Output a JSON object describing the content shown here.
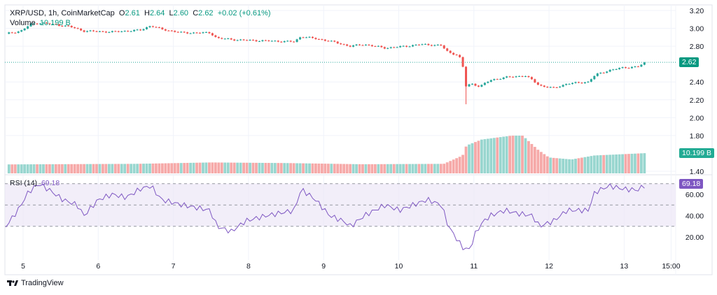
{
  "header": {
    "symbol": "XRP/USD, 1h, CoinMarketCap",
    "o_label": "O",
    "o": "2.61",
    "h_label": "H",
    "h": "2.64",
    "l_label": "L",
    "l": "2.60",
    "c_label": "C",
    "c": "2.62",
    "change": "+0.02 (+0.61%)",
    "volume_label": "Volume",
    "volume": "10.199 B"
  },
  "rsi_legend": {
    "label": "RSI (14)",
    "value": "69.18"
  },
  "price_tag": "2.62",
  "volume_tag": "10.199 B",
  "rsi_tag": "69.18",
  "brand": "TradingView",
  "colors": {
    "up": "#26a69a",
    "down": "#ef5350",
    "up_vol": "#98d6cf",
    "down_vol": "#f6a9a8",
    "rsi": "#7e57c2",
    "rsi_band": "#ede7f6"
  },
  "chart_data": {
    "type": "candlestick",
    "title": "XRP/USD, 1h, CoinMarketCap",
    "price_axis": {
      "ticks": [
        "3.20",
        "3.00",
        "2.80",
        "2.40",
        "2.20",
        "2.00",
        "1.80",
        "1.40"
      ],
      "range": [
        1.4,
        3.2
      ]
    },
    "time_axis": {
      "ticks": [
        "5",
        "6",
        "7",
        "8",
        "9",
        "10",
        "11",
        "12",
        "13",
        "15:00"
      ],
      "tick_days": [
        5,
        6,
        7,
        8,
        9,
        10,
        11,
        12,
        13,
        13.625
      ]
    },
    "price_points": [
      [
        4.77,
        2.94
      ],
      [
        4.97,
        2.97
      ],
      [
        5.11,
        3.05
      ],
      [
        5.25,
        3.06
      ],
      [
        5.62,
        3.02
      ],
      [
        5.81,
        2.97
      ],
      [
        6.18,
        2.96
      ],
      [
        6.56,
        2.98
      ],
      [
        6.7,
        3.03
      ],
      [
        6.84,
        2.99
      ],
      [
        7.12,
        2.95
      ],
      [
        7.49,
        2.95
      ],
      [
        7.58,
        2.89
      ],
      [
        7.86,
        2.87
      ],
      [
        8.23,
        2.86
      ],
      [
        8.61,
        2.85
      ],
      [
        8.7,
        2.91
      ],
      [
        9.07,
        2.86
      ],
      [
        9.35,
        2.8
      ],
      [
        9.54,
        2.82
      ],
      [
        9.82,
        2.78
      ],
      [
        10.1,
        2.8
      ],
      [
        10.28,
        2.82
      ],
      [
        10.56,
        2.81
      ],
      [
        10.66,
        2.73
      ],
      [
        10.8,
        2.7
      ],
      [
        10.86,
        2.55
      ],
      [
        10.89,
        2.35
      ],
      [
        10.96,
        2.38
      ],
      [
        11.08,
        2.35
      ],
      [
        11.22,
        2.42
      ],
      [
        11.41,
        2.45
      ],
      [
        11.68,
        2.47
      ],
      [
        11.78,
        2.42
      ],
      [
        11.87,
        2.36
      ],
      [
        12.06,
        2.33
      ],
      [
        12.24,
        2.38
      ],
      [
        12.52,
        2.4
      ],
      [
        12.62,
        2.48
      ],
      [
        12.8,
        2.53
      ],
      [
        12.99,
        2.56
      ],
      [
        13.18,
        2.57
      ],
      [
        13.29,
        2.62
      ]
    ],
    "volume_points_billions": [
      [
        4.77,
        4.5
      ],
      [
        6.5,
        4.8
      ],
      [
        7.5,
        5.5
      ],
      [
        8.5,
        5.2
      ],
      [
        9.5,
        4.6
      ],
      [
        10.6,
        4.8
      ],
      [
        10.85,
        9
      ],
      [
        10.9,
        14
      ],
      [
        11.1,
        17
      ],
      [
        11.5,
        19
      ],
      [
        11.65,
        19
      ],
      [
        11.85,
        12
      ],
      [
        12.0,
        8
      ],
      [
        12.3,
        7
      ],
      [
        12.6,
        9
      ],
      [
        13.29,
        10.2
      ]
    ],
    "rsi": {
      "period": 14,
      "ticks": [
        "60.00",
        "40.00",
        "20.00"
      ],
      "band": [
        30,
        70
      ],
      "midline": 50,
      "points": [
        [
          4.77,
          30
        ],
        [
          4.93,
          45
        ],
        [
          5.07,
          62
        ],
        [
          5.21,
          70
        ],
        [
          5.35,
          64
        ],
        [
          5.53,
          55
        ],
        [
          5.72,
          50
        ],
        [
          5.81,
          40
        ],
        [
          6.0,
          55
        ],
        [
          6.19,
          60
        ],
        [
          6.37,
          57
        ],
        [
          6.56,
          65
        ],
        [
          6.7,
          68
        ],
        [
          6.84,
          55
        ],
        [
          7.12,
          50
        ],
        [
          7.49,
          45
        ],
        [
          7.58,
          30
        ],
        [
          7.77,
          25
        ],
        [
          7.96,
          35
        ],
        [
          8.24,
          40
        ],
        [
          8.61,
          45
        ],
        [
          8.7,
          65
        ],
        [
          8.89,
          55
        ],
        [
          9.08,
          40
        ],
        [
          9.26,
          35
        ],
        [
          9.36,
          30
        ],
        [
          9.54,
          40
        ],
        [
          9.82,
          50
        ],
        [
          10.01,
          45
        ],
        [
          10.19,
          50
        ],
        [
          10.38,
          55
        ],
        [
          10.57,
          50
        ],
        [
          10.66,
          30
        ],
        [
          10.85,
          10
        ],
        [
          10.94,
          8
        ],
        [
          11.03,
          25
        ],
        [
          11.13,
          35
        ],
        [
          11.22,
          40
        ],
        [
          11.41,
          45
        ],
        [
          11.59,
          42
        ],
        [
          11.78,
          40
        ],
        [
          11.87,
          30
        ],
        [
          12.06,
          35
        ],
        [
          12.24,
          45
        ],
        [
          12.52,
          45
        ],
        [
          12.61,
          62
        ],
        [
          12.8,
          68
        ],
        [
          12.99,
          65
        ],
        [
          13.18,
          64
        ],
        [
          13.29,
          69.18
        ]
      ]
    }
  }
}
